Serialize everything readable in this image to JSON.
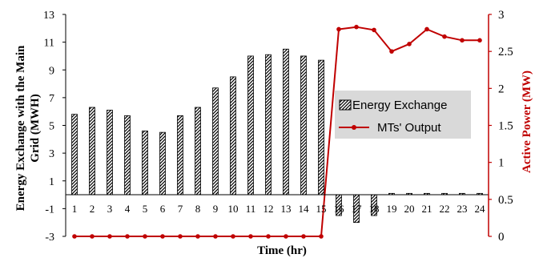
{
  "chart_data": {
    "type": "bar+line",
    "categories": [
      "1",
      "2",
      "3",
      "4",
      "5",
      "6",
      "7",
      "8",
      "9",
      "10",
      "11",
      "12",
      "13",
      "14",
      "15",
      "16",
      "17",
      "18",
      "19",
      "20",
      "21",
      "22",
      "23",
      "24"
    ],
    "series": [
      {
        "name": "Energy Exchange",
        "type": "bar",
        "axis": "left",
        "fill": "hatched",
        "values": [
          5.8,
          6.3,
          6.1,
          5.7,
          4.6,
          4.5,
          5.7,
          6.3,
          7.7,
          8.5,
          10.0,
          10.1,
          10.5,
          10.0,
          9.7,
          -1.5,
          -2.0,
          -1.5,
          0.1,
          0.1,
          0.1,
          0.1,
          0.1,
          0.1
        ]
      },
      {
        "name": "MTs' Output",
        "type": "line",
        "axis": "right",
        "color": "#c00000",
        "values": [
          0,
          0,
          0,
          0,
          0,
          0,
          0,
          0,
          0,
          0,
          0,
          0,
          0,
          0,
          0,
          2.8,
          2.83,
          2.79,
          2.5,
          2.6,
          2.8,
          2.7,
          2.65,
          2.65
        ]
      }
    ],
    "xlabel": "Time (hr)",
    "ylabel_left": "Energy Exchange with the Main Grid (MWH)",
    "ylabel_right": "Active Power (MW)",
    "ylim_left": [
      -3,
      13
    ],
    "ylim_right": [
      0,
      3
    ],
    "yticks_left": [
      "-3",
      "-1",
      "1",
      "3",
      "5",
      "7",
      "9",
      "11",
      "13"
    ],
    "yticks_right": [
      "0",
      "0.5",
      "1",
      "1.5",
      "2",
      "2.5",
      "3"
    ],
    "legend_position": "center-right",
    "grid": false,
    "colors": {
      "line": "#c00000",
      "right_axis": "#c00000",
      "legend_box": "#d9d9d9"
    }
  }
}
